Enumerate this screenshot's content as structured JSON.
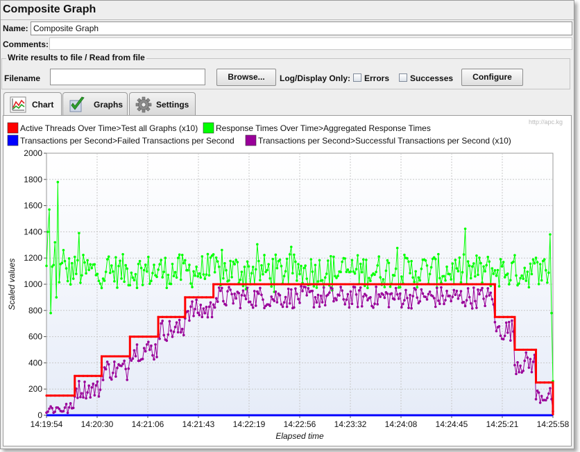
{
  "window": {
    "title": "Composite Graph",
    "name_label": "Name:",
    "name_value": "Composite Graph",
    "comments_label": "Comments:",
    "comments_value": ""
  },
  "file_panel": {
    "title": "Write results to file / Read from file",
    "filename_label": "Filename",
    "filename_value": "",
    "browse_label": "Browse...",
    "log_display_label": "Log/Display Only:",
    "errors_label": "Errors",
    "errors_checked": false,
    "successes_label": "Successes",
    "successes_checked": false,
    "configure_label": "Configure"
  },
  "tabs": [
    {
      "label": "Chart",
      "icon": "chart-icon",
      "active": true
    },
    {
      "label": "Graphs",
      "icon": "checkmark-icon",
      "active": false
    },
    {
      "label": "Settings",
      "icon": "gear-icon",
      "active": false
    }
  ],
  "watermark": "http://apc.kg",
  "colors": {
    "active_threads": "#ff0000",
    "response_times": "#00ff00",
    "failed_tps": "#0000ff",
    "successful_tps": "#990099",
    "plot_bg_top": "#ffffff",
    "plot_bg_bottom": "#e6ecf8",
    "grid": "#c8c8c8"
  },
  "chart_data": {
    "type": "line",
    "xlabel": "Elapsed time",
    "ylabel": "Scaled values",
    "ylim": [
      0,
      2000
    ],
    "yticks": [
      0,
      200,
      400,
      600,
      800,
      1000,
      1200,
      1400,
      1600,
      1800,
      2000
    ],
    "xticks": [
      "14:19:54",
      "14:20:30",
      "14:21:06",
      "14:21:43",
      "14:22:19",
      "14:22:56",
      "14:23:32",
      "14:24:08",
      "14:24:45",
      "14:25:21",
      "14:25:58"
    ],
    "grid": true,
    "legend_placement": "top",
    "series": [
      {
        "name": "Active Threads Over Time>Test all Graphs (x10)",
        "color": "#ff0000",
        "style": "step",
        "points": [
          [
            0,
            150
          ],
          [
            20,
            150
          ],
          [
            20,
            300
          ],
          [
            39,
            300
          ],
          [
            39,
            450
          ],
          [
            59,
            450
          ],
          [
            59,
            600
          ],
          [
            79,
            600
          ],
          [
            79,
            750
          ],
          [
            98,
            750
          ],
          [
            98,
            900
          ],
          [
            118,
            900
          ],
          [
            118,
            1000
          ],
          [
            317,
            1000
          ],
          [
            317,
            750
          ],
          [
            331,
            750
          ],
          [
            331,
            500
          ],
          [
            346,
            500
          ],
          [
            346,
            250
          ],
          [
            358,
            250
          ],
          [
            358,
            0
          ]
        ]
      },
      {
        "name": "Response Times Over Time>Aggregated Response Times",
        "color": "#00ff00",
        "style": "noisy",
        "base": 1100,
        "amplitude": 260,
        "start": 0,
        "end": 358,
        "peaks": [
          [
            1,
            1400
          ],
          [
            2,
            1570
          ],
          [
            3,
            780
          ],
          [
            6,
            1320
          ],
          [
            7,
            900
          ],
          [
            8,
            1780
          ],
          [
            12,
            1260
          ],
          [
            23,
            1390
          ],
          [
            356,
            1380
          ],
          [
            357,
            780
          ],
          [
            358,
            260
          ]
        ]
      },
      {
        "name": "Transactions per Second>Failed Transactions per Second",
        "color": "#0000ff",
        "style": "flat",
        "value": 0
      },
      {
        "name": "Transactions per Second>Successful Transactions per Second (x10)",
        "color": "#990099",
        "style": "noisy-follow",
        "offset": -100,
        "amplitude": 170
      }
    ]
  }
}
